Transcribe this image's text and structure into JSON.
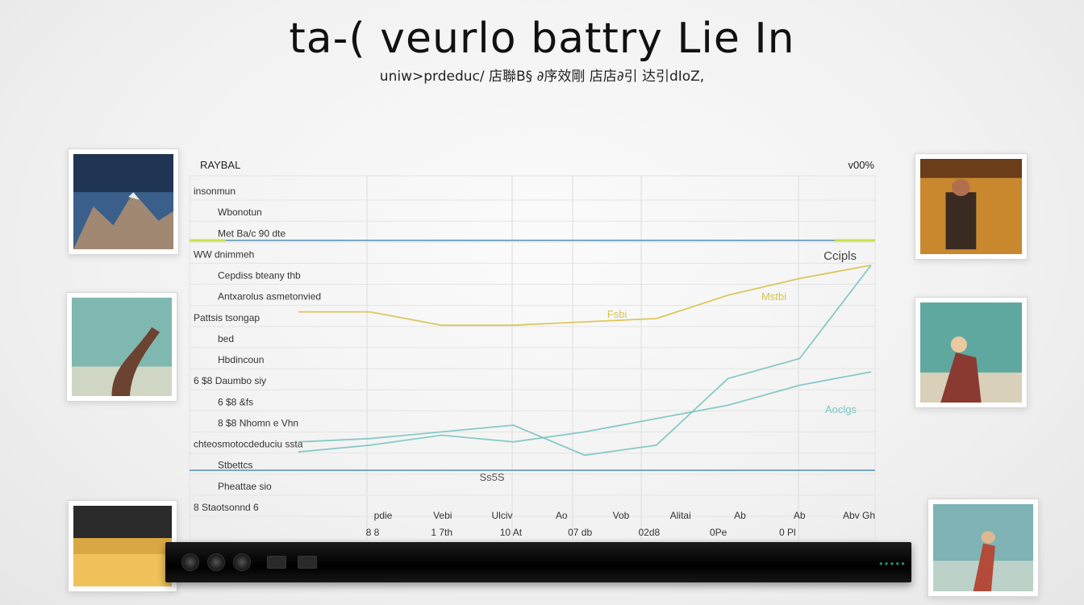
{
  "title": "ta-( veurlo battry Lie In",
  "subtitle": "uniw>prdeduc/ 店聯B§ ∂序效剛 店店∂引 达引dIoZ,",
  "colors": {
    "cyan": "#7cc4c2",
    "yellow": "#d9c24a",
    "green": "#c8e04a",
    "blue": "#7aa8c0",
    "grid": "#dcdcdc"
  },
  "thumbnails": [
    {
      "name": "thumb-left-1",
      "palette": "mountain-blue"
    },
    {
      "name": "thumb-left-2",
      "palette": "teal-tree"
    },
    {
      "name": "thumb-left-3",
      "palette": "sunset-gold"
    },
    {
      "name": "thumb-right-1",
      "palette": "orange-figure"
    },
    {
      "name": "thumb-right-2",
      "palette": "teal-figure"
    },
    {
      "name": "thumb-right-3",
      "palette": "sea-figure"
    }
  ],
  "chart_data": {
    "type": "line",
    "title": "ta-( veurlo battry Lie In",
    "corner_label_left": "RAYBAL",
    "corner_label_right": "v00%",
    "row_labels": [
      "insonmun",
      "Wbonotun",
      "Met Ba/c 90 dte",
      "WW dnimmeh",
      "Cepdiss bteany thb",
      "Antxarolus asmetonvied",
      "Pattsis tsongap",
      "bed",
      "Hbdincoun",
      "6 $8 Daumbo siy",
      "6 $8 &fs",
      "8 $8 Nhomn e Vhn",
      "chteosmotocdeduciu ssta",
      "Stbettcs",
      "Pheattae sio",
      "8 Staotsonnd 6"
    ],
    "x_tick_labels": [
      "pdie",
      "Vebi",
      "Ulciv",
      "Ao",
      "Vob",
      "Alitai",
      "Ab",
      "Ab",
      "Abv Gh"
    ],
    "x_value_labels": [
      "8 8",
      "1 7th",
      "10 At",
      "07 db",
      "02d8",
      "0Pe",
      "0 Pl",
      ""
    ],
    "annotations": [
      "Ccipls",
      "Mstbi",
      "Fsbi",
      "Aoclgs",
      "Ss5S"
    ],
    "series": [
      {
        "name": "Mstbi",
        "color": "yellow",
        "x": [
          0,
          1,
          2,
          3,
          4,
          5,
          6,
          7,
          8
        ],
        "y": [
          48,
          48,
          44,
          44,
          45,
          46,
          53,
          58,
          62
        ]
      },
      {
        "name": "Ccipls",
        "color": "cyan",
        "x": [
          0,
          1,
          2,
          3,
          4,
          5,
          6,
          7,
          8
        ],
        "y": [
          9,
          10,
          12,
          14,
          5,
          8,
          28,
          34,
          62
        ]
      },
      {
        "name": "Aoclgs",
        "color": "cyan",
        "x": [
          0,
          1,
          2,
          3,
          4,
          5,
          6,
          7,
          8
        ],
        "y": [
          6,
          8,
          11,
          9,
          12,
          16,
          20,
          26,
          30
        ]
      }
    ],
    "xlim": [
      0,
      8
    ],
    "ylim": [
      0,
      100
    ],
    "grid": true,
    "legend": "none"
  }
}
